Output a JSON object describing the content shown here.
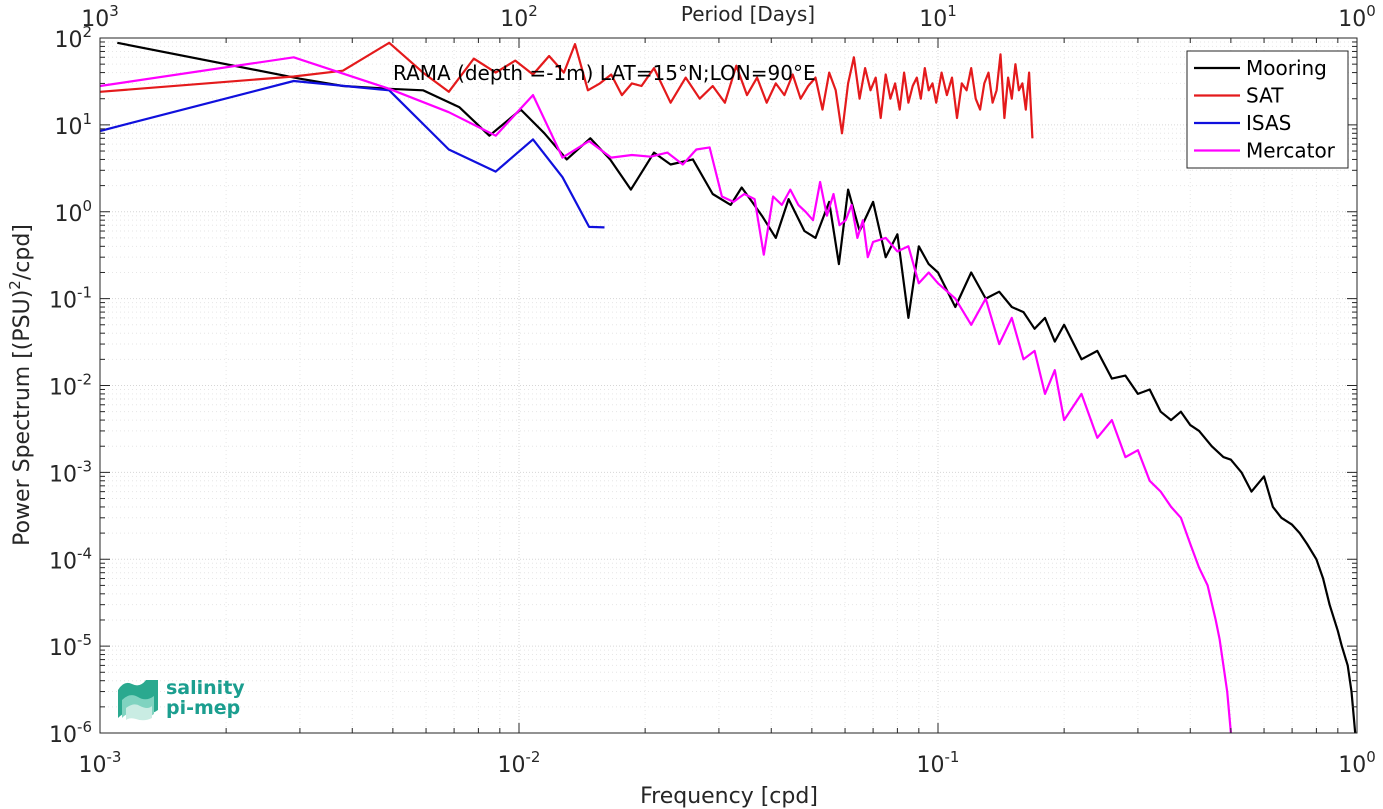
{
  "chart_data": {
    "type": "line",
    "title": "",
    "annotation": "RAMA (depth =-1m) LAT=15°N;LON=90°E",
    "xlabel": "Frequency [cpd]",
    "ylabel": "Power Spectrum [(PSU)²/cpd]",
    "ylabel_parts": {
      "before": "Power Spectrum [(PSU)",
      "sup": "2",
      "after": "/cpd]"
    },
    "top_xlabel": "Period [Days]",
    "xscale": "log",
    "yscale": "log",
    "xlim": [
      0.001,
      1
    ],
    "ylim": [
      1e-06,
      100
    ],
    "grid": true,
    "legend_position": "top-right",
    "x_ticks": [
      {
        "value": 0.001,
        "base": "10",
        "exp": "-3"
      },
      {
        "value": 0.01,
        "base": "10",
        "exp": "-2"
      },
      {
        "value": 0.1,
        "base": "10",
        "exp": "-1"
      },
      {
        "value": 1,
        "base": "10",
        "exp": "0"
      }
    ],
    "top_ticks": [
      {
        "value": 0.001,
        "base": "10",
        "exp": "3"
      },
      {
        "value": 0.01,
        "base": "10",
        "exp": "2"
      },
      {
        "value": 0.1,
        "base": "10",
        "exp": "1"
      },
      {
        "value": 1,
        "base": "10",
        "exp": "0"
      }
    ],
    "y_ticks": [
      {
        "value": 100,
        "base": "10",
        "exp": "2"
      },
      {
        "value": 10,
        "base": "10",
        "exp": "1"
      },
      {
        "value": 1,
        "base": "10",
        "exp": "0"
      },
      {
        "value": 0.1,
        "base": "10",
        "exp": "-1"
      },
      {
        "value": 0.01,
        "base": "10",
        "exp": "-2"
      },
      {
        "value": 0.001,
        "base": "10",
        "exp": "-3"
      },
      {
        "value": 0.0001,
        "base": "10",
        "exp": "-4"
      },
      {
        "value": 1e-05,
        "base": "10",
        "exp": "-5"
      },
      {
        "value": 1e-06,
        "base": "10",
        "exp": "-6"
      }
    ],
    "series": [
      {
        "name": "Mooring",
        "color": "#000000",
        "x": [
          0.0011,
          0.003,
          0.0038,
          0.0049,
          0.0059,
          0.0072,
          0.0085,
          0.0101,
          0.0115,
          0.013,
          0.0148,
          0.0165,
          0.0185,
          0.021,
          0.023,
          0.026,
          0.029,
          0.032,
          0.034,
          0.036,
          0.038,
          0.041,
          0.044,
          0.048,
          0.051,
          0.055,
          0.058,
          0.061,
          0.065,
          0.07,
          0.075,
          0.08,
          0.085,
          0.09,
          0.095,
          0.1,
          0.11,
          0.12,
          0.13,
          0.14,
          0.15,
          0.16,
          0.17,
          0.18,
          0.19,
          0.2,
          0.22,
          0.24,
          0.26,
          0.28,
          0.3,
          0.32,
          0.34,
          0.36,
          0.38,
          0.4,
          0.42,
          0.45,
          0.48,
          0.5,
          0.53,
          0.56,
          0.6,
          0.63,
          0.66,
          0.7,
          0.73,
          0.76,
          0.8,
          0.83,
          0.86,
          0.9,
          0.92,
          0.95,
          0.97,
          0.99
        ],
        "y": [
          88,
          34,
          28,
          26,
          25,
          16,
          7.5,
          15,
          8,
          4,
          7,
          4,
          1.8,
          4.8,
          3.5,
          4,
          1.6,
          1.2,
          1.9,
          1.3,
          0.9,
          0.5,
          1.4,
          0.6,
          0.5,
          1.3,
          0.25,
          1.8,
          0.6,
          1.3,
          0.3,
          0.55,
          0.06,
          0.4,
          0.25,
          0.2,
          0.08,
          0.2,
          0.1,
          0.12,
          0.08,
          0.07,
          0.045,
          0.06,
          0.032,
          0.05,
          0.02,
          0.025,
          0.012,
          0.013,
          0.008,
          0.009,
          0.005,
          0.004,
          0.005,
          0.0035,
          0.003,
          0.002,
          0.0015,
          0.0014,
          0.001,
          0.0006,
          0.0009,
          0.0004,
          0.0003,
          0.00025,
          0.0002,
          0.00015,
          0.0001,
          6e-05,
          3e-05,
          1.5e-05,
          1e-05,
          6e-06,
          3e-06,
          1e-06
        ]
      },
      {
        "name": "SAT",
        "color": "#e41a1c",
        "x": [
          0.001,
          0.0029,
          0.0038,
          0.0049,
          0.0059,
          0.0068,
          0.0078,
          0.0088,
          0.0098,
          0.0108,
          0.0118,
          0.0128,
          0.0136,
          0.0146,
          0.0156,
          0.0166,
          0.0176,
          0.0186,
          0.0196,
          0.021,
          0.023,
          0.025,
          0.027,
          0.029,
          0.031,
          0.033,
          0.035,
          0.037,
          0.039,
          0.041,
          0.043,
          0.045,
          0.047,
          0.049,
          0.051,
          0.053,
          0.055,
          0.057,
          0.059,
          0.061,
          0.063,
          0.065,
          0.067,
          0.069,
          0.071,
          0.073,
          0.075,
          0.077,
          0.079,
          0.081,
          0.083,
          0.085,
          0.087,
          0.089,
          0.091,
          0.093,
          0.095,
          0.097,
          0.099,
          0.102,
          0.105,
          0.108,
          0.111,
          0.114,
          0.117,
          0.12,
          0.123,
          0.126,
          0.129,
          0.132,
          0.135,
          0.138,
          0.141,
          0.144,
          0.147,
          0.15,
          0.153,
          0.156,
          0.159,
          0.162,
          0.165,
          0.168
        ],
        "y": [
          24,
          36,
          42,
          88,
          40,
          24,
          58,
          40,
          55,
          38,
          62,
          40,
          85,
          25,
          30,
          38,
          22,
          30,
          28,
          45,
          18,
          35,
          20,
          28,
          18,
          48,
          22,
          35,
          18,
          30,
          22,
          38,
          20,
          28,
          35,
          15,
          40,
          25,
          8,
          30,
          60,
          20,
          45,
          25,
          35,
          12,
          38,
          20,
          30,
          15,
          40,
          18,
          28,
          35,
          20,
          45,
          25,
          30,
          18,
          40,
          22,
          35,
          12,
          30,
          25,
          45,
          20,
          15,
          30,
          40,
          18,
          25,
          65,
          12,
          35,
          20,
          50,
          25,
          30,
          15,
          40,
          7
        ]
      },
      {
        "name": "ISAS",
        "color": "#1010dd",
        "x": [
          0.001,
          0.0029,
          0.0049,
          0.0068,
          0.0088,
          0.0108,
          0.0127,
          0.0147,
          0.016
        ],
        "y": [
          8.5,
          32,
          25,
          5.2,
          2.9,
          6.8,
          2.5,
          0.67,
          0.66
        ]
      },
      {
        "name": "Mercator",
        "color": "#ff00ff",
        "x": [
          0.001,
          0.0029,
          0.0049,
          0.0068,
          0.0088,
          0.0108,
          0.0127,
          0.0147,
          0.0166,
          0.0186,
          0.0206,
          0.0226,
          0.0246,
          0.0265,
          0.0285,
          0.0305,
          0.0325,
          0.0345,
          0.0365,
          0.0384,
          0.0404,
          0.0424,
          0.0444,
          0.0464,
          0.0483,
          0.0503,
          0.0523,
          0.0543,
          0.0563,
          0.0582,
          0.0602,
          0.0622,
          0.0642,
          0.0662,
          0.068,
          0.07,
          0.075,
          0.08,
          0.085,
          0.09,
          0.095,
          0.1,
          0.11,
          0.12,
          0.13,
          0.14,
          0.15,
          0.16,
          0.17,
          0.18,
          0.19,
          0.2,
          0.22,
          0.24,
          0.26,
          0.28,
          0.3,
          0.32,
          0.34,
          0.36,
          0.38,
          0.4,
          0.42,
          0.44,
          0.46,
          0.47,
          0.48,
          0.49,
          0.5
        ],
        "y": [
          28,
          60,
          26,
          14,
          7.5,
          22,
          4.2,
          6.5,
          4.2,
          4.5,
          4.3,
          4.8,
          3.5,
          5.2,
          5.5,
          1.5,
          1.3,
          1.6,
          1.4,
          0.32,
          1.5,
          1.2,
          1.8,
          1.2,
          1.0,
          0.8,
          2.2,
          0.9,
          1.6,
          0.7,
          0.8,
          1.2,
          0.5,
          0.8,
          0.3,
          0.45,
          0.5,
          0.35,
          0.4,
          0.15,
          0.2,
          0.15,
          0.1,
          0.05,
          0.1,
          0.03,
          0.06,
          0.02,
          0.025,
          0.008,
          0.015,
          0.004,
          0.008,
          0.0025,
          0.004,
          0.0015,
          0.0018,
          0.0008,
          0.0006,
          0.0004,
          0.0003,
          0.00015,
          8e-05,
          5e-05,
          2e-05,
          1.2e-05,
          6e-06,
          3e-06,
          1e-06
        ]
      }
    ]
  },
  "logo": {
    "line1": "salinity",
    "line2": "pi-mep"
  }
}
